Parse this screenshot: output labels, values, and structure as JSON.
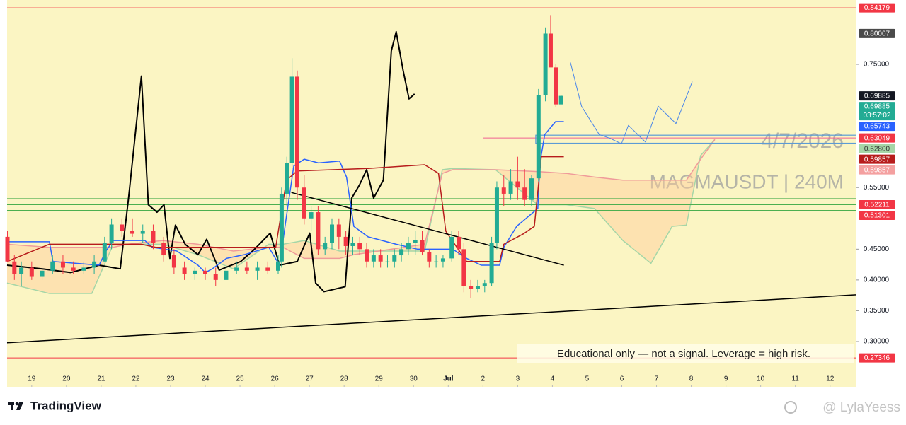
{
  "chart_data": {
    "type": "candlestick",
    "symbol_watermark": "MAGMAUSDT | 240M",
    "date_watermark": "4/7/2026",
    "annotation": "Educational only — not a signal. Leverage  = high risk.",
    "up_color": "#22ab94",
    "down_color": "#f23645",
    "xlim": [
      -0.71,
      23.76
    ],
    "ylim": [
      0.2265,
      0.8545
    ],
    "xticks": [
      {
        "value": 0,
        "label": "19"
      },
      {
        "value": 1,
        "label": "20"
      },
      {
        "value": 2,
        "label": "21"
      },
      {
        "value": 3,
        "label": "22"
      },
      {
        "value": 4,
        "label": "23"
      },
      {
        "value": 5,
        "label": "24"
      },
      {
        "value": 6,
        "label": "25"
      },
      {
        "value": 7,
        "label": "26"
      },
      {
        "value": 8,
        "label": "27"
      },
      {
        "value": 9,
        "label": "28"
      },
      {
        "value": 10,
        "label": "29"
      },
      {
        "value": 11,
        "label": "30"
      },
      {
        "value": 12,
        "label": "Jul"
      },
      {
        "value": 13,
        "label": "2"
      },
      {
        "value": 14,
        "label": "3"
      },
      {
        "value": 15,
        "label": "4"
      },
      {
        "value": 16,
        "label": "5"
      },
      {
        "value": 17,
        "label": "6"
      },
      {
        "value": 18,
        "label": "7"
      },
      {
        "value": 19,
        "label": "8"
      },
      {
        "value": 20,
        "label": "9"
      },
      {
        "value": 21,
        "label": "10"
      },
      {
        "value": 22,
        "label": "11"
      },
      {
        "value": 23,
        "label": "12"
      }
    ],
    "yticks": [
      {
        "value": 0.3,
        "label": "0.30000"
      },
      {
        "value": 0.35,
        "label": "0.35000"
      },
      {
        "value": 0.4,
        "label": "0.40000"
      },
      {
        "value": 0.45,
        "label": "0.45000"
      },
      {
        "value": 0.55,
        "label": "0.55000"
      },
      {
        "value": 0.75,
        "label": "0.75000"
      }
    ],
    "candles": {
      "x": [
        -0.7,
        -0.5,
        -0.3,
        0.0,
        0.3,
        0.6,
        0.9,
        1.2,
        1.5,
        1.8,
        2.1,
        2.3,
        2.6,
        2.9,
        3.2,
        3.5,
        3.8,
        4.1,
        4.4,
        4.7,
        5.0,
        5.3,
        5.6,
        5.9,
        6.2,
        6.5,
        6.8,
        7.1,
        7.2,
        7.35,
        7.5,
        7.65,
        7.85,
        8.05,
        8.25,
        8.45,
        8.65,
        8.85,
        9.05,
        9.25,
        9.45,
        9.65,
        9.85,
        10.05,
        10.25,
        10.45,
        10.65,
        10.85,
        11.05,
        11.25,
        11.45,
        11.65,
        11.85,
        12.1,
        12.3,
        12.45,
        12.65,
        12.85,
        13.05,
        13.25,
        13.4,
        13.6,
        13.8,
        14.0,
        14.2,
        14.4,
        14.6,
        14.8,
        14.95,
        15.1,
        15.25
      ],
      "open": [
        0.47,
        0.43,
        0.41,
        0.42,
        0.405,
        0.415,
        0.43,
        0.42,
        0.415,
        0.42,
        0.43,
        0.46,
        0.49,
        0.48,
        0.475,
        0.48,
        0.46,
        0.44,
        0.42,
        0.41,
        0.415,
        0.41,
        0.4,
        0.415,
        0.42,
        0.415,
        0.42,
        0.415,
        0.43,
        0.54,
        0.59,
        0.73,
        0.55,
        0.5,
        0.51,
        0.45,
        0.46,
        0.49,
        0.47,
        0.455,
        0.46,
        0.45,
        0.43,
        0.44,
        0.43,
        0.43,
        0.44,
        0.45,
        0.46,
        0.465,
        0.445,
        0.43,
        0.43,
        0.435,
        0.47,
        0.45,
        0.39,
        0.385,
        0.39,
        0.395,
        0.46,
        0.55,
        0.54,
        0.56,
        0.55,
        0.53,
        0.565,
        0.7,
        0.8,
        0.745,
        0.685
      ],
      "high": [
        0.48,
        0.44,
        0.43,
        0.43,
        0.42,
        0.44,
        0.44,
        0.43,
        0.43,
        0.44,
        0.47,
        0.5,
        0.5,
        0.5,
        0.49,
        0.49,
        0.47,
        0.45,
        0.43,
        0.42,
        0.42,
        0.42,
        0.42,
        0.43,
        0.43,
        0.43,
        0.43,
        0.44,
        0.55,
        0.6,
        0.76,
        0.74,
        0.57,
        0.52,
        0.52,
        0.47,
        0.5,
        0.5,
        0.48,
        0.47,
        0.47,
        0.46,
        0.45,
        0.45,
        0.44,
        0.45,
        0.46,
        0.47,
        0.48,
        0.48,
        0.45,
        0.44,
        0.44,
        0.48,
        0.48,
        0.46,
        0.4,
        0.4,
        0.4,
        0.47,
        0.56,
        0.57,
        0.58,
        0.6,
        0.58,
        0.57,
        0.71,
        0.81,
        0.83,
        0.75,
        0.7
      ],
      "low": [
        0.43,
        0.4,
        0.39,
        0.4,
        0.4,
        0.41,
        0.41,
        0.41,
        0.41,
        0.41,
        0.43,
        0.45,
        0.47,
        0.47,
        0.46,
        0.45,
        0.43,
        0.41,
        0.4,
        0.4,
        0.4,
        0.39,
        0.4,
        0.41,
        0.41,
        0.4,
        0.41,
        0.41,
        0.42,
        0.52,
        0.58,
        0.53,
        0.49,
        0.48,
        0.44,
        0.44,
        0.45,
        0.45,
        0.44,
        0.44,
        0.44,
        0.42,
        0.42,
        0.42,
        0.42,
        0.42,
        0.43,
        0.44,
        0.44,
        0.44,
        0.42,
        0.42,
        0.42,
        0.43,
        0.44,
        0.38,
        0.37,
        0.38,
        0.38,
        0.39,
        0.45,
        0.52,
        0.53,
        0.53,
        0.52,
        0.52,
        0.56,
        0.69,
        0.77,
        0.68,
        0.685
      ],
      "close": [
        0.43,
        0.41,
        0.42,
        0.405,
        0.415,
        0.43,
        0.42,
        0.415,
        0.42,
        0.43,
        0.46,
        0.49,
        0.48,
        0.475,
        0.48,
        0.46,
        0.44,
        0.42,
        0.41,
        0.415,
        0.41,
        0.4,
        0.415,
        0.42,
        0.415,
        0.42,
        0.415,
        0.43,
        0.54,
        0.59,
        0.73,
        0.55,
        0.5,
        0.51,
        0.45,
        0.46,
        0.49,
        0.47,
        0.455,
        0.46,
        0.45,
        0.43,
        0.44,
        0.43,
        0.43,
        0.44,
        0.45,
        0.46,
        0.465,
        0.445,
        0.43,
        0.43,
        0.435,
        0.47,
        0.45,
        0.39,
        0.385,
        0.39,
        0.395,
        0.46,
        0.55,
        0.54,
        0.56,
        0.55,
        0.53,
        0.565,
        0.7,
        0.8,
        0.745,
        0.685,
        0.69885
      ]
    },
    "cloud": {
      "x": [
        -0.71,
        0.51,
        1.73,
        2.35,
        2.75,
        3.77,
        4.79,
        5.81,
        6.83,
        7.24,
        7.85,
        8.87,
        9.28,
        11.32,
        11.83,
        12.13,
        13.36,
        14.58,
        15.4,
        16.21,
        17.03,
        17.84,
        18.45,
        18.86,
        19.27,
        19.68
      ],
      "a": [
        0.395,
        0.378,
        0.378,
        0.458,
        0.458,
        0.458,
        0.441,
        0.418,
        0.458,
        0.458,
        0.464,
        0.447,
        0.447,
        0.447,
        0.579,
        0.581,
        0.579,
        0.522,
        0.522,
        0.516,
        0.464,
        0.427,
        0.487,
        0.489,
        0.602,
        0.628
      ],
      "b": [
        0.458,
        0.453,
        0.453,
        0.453,
        0.458,
        0.464,
        0.458,
        0.447,
        0.453,
        0.453,
        0.435,
        0.435,
        0.441,
        0.458,
        0.573,
        0.579,
        0.579,
        0.576,
        0.573,
        0.567,
        0.562,
        0.562,
        0.562,
        0.562,
        0.596,
        0.628
      ],
      "a_color": "#a5d6a7",
      "b_color": "#ef9a9a",
      "fill": "#ffcc99"
    },
    "overlays": [
      {
        "color": "#000000",
        "width": 2,
        "x": [
          -0.71,
          0.31,
          1.12,
          1.94,
          2.55,
          2.79,
          3.16,
          3.36,
          3.61,
          3.81,
          3.98,
          4.14,
          4.42,
          4.79,
          5.04,
          5.4,
          6.02,
          6.42,
          6.87,
          7.14,
          7.65,
          8.01,
          8.18,
          8.42,
          9.03,
          9.22,
          9.44,
          9.65,
          9.85,
          10.13,
          10.36,
          10.5,
          10.7,
          10.87,
          11.03
        ],
        "values": [
          0.424,
          0.418,
          0.412,
          0.424,
          0.418,
          0.533,
          0.731,
          0.522,
          0.51,
          0.522,
          0.435,
          0.489,
          0.458,
          0.441,
          0.466,
          0.416,
          0.43,
          0.45,
          0.476,
          0.424,
          0.43,
          0.476,
          0.395,
          0.381,
          0.389,
          0.533,
          0.554,
          0.579,
          0.533,
          0.562,
          0.772,
          0.803,
          0.74,
          0.694,
          0.702
        ]
      },
      {
        "color": "#2962ff",
        "width": 1.5,
        "x": [
          -0.71,
          0.51,
          0.61,
          1.94,
          2.14,
          2.35,
          3.26,
          3.47,
          4.18,
          4.79,
          5.0,
          5.2,
          5.61,
          6.12,
          6.83,
          7.14,
          7.34,
          7.55,
          7.85,
          8.26,
          8.87,
          9.07,
          9.28,
          9.69,
          10.5,
          11.11,
          12.13,
          12.53,
          12.95,
          13.48,
          13.6,
          13.97,
          14.58,
          14.64,
          14.78,
          15.09,
          15.33
        ],
        "values": [
          0.462,
          0.462,
          0.43,
          0.424,
          0.447,
          0.464,
          0.464,
          0.453,
          0.447,
          0.424,
          0.412,
          0.418,
          0.435,
          0.441,
          0.453,
          0.424,
          0.504,
          0.585,
          0.596,
          0.59,
          0.593,
          0.567,
          0.487,
          0.47,
          0.458,
          0.45,
          0.45,
          0.435,
          0.424,
          0.424,
          0.453,
          0.487,
          0.516,
          0.59,
          0.636,
          0.657,
          0.657
        ]
      },
      {
        "color": "#b71c1c",
        "width": 1.5,
        "x": [
          -0.71,
          0.51,
          3.16,
          3.57,
          7.03,
          7.34,
          7.65,
          8.67,
          9.69,
          11.32,
          11.72,
          11.93,
          12.53,
          13.48,
          13.6,
          14.17,
          14.48,
          14.68,
          15.33
        ],
        "values": [
          0.43,
          0.458,
          0.458,
          0.453,
          0.453,
          0.562,
          0.577,
          0.579,
          0.581,
          0.587,
          0.573,
          0.479,
          0.43,
          0.43,
          0.458,
          0.475,
          0.487,
          0.6,
          0.6
        ]
      },
      {
        "color": "#000000",
        "width": 1.5,
        "x": [
          7.48,
          15.33
        ],
        "values": [
          0.542,
          0.424
        ]
      },
      {
        "color": "#000000",
        "width": 1.5,
        "x": [
          -0.71,
          23.8
        ],
        "values": [
          0.298,
          0.376
        ]
      },
      {
        "color": "#4a86e8",
        "width": 1,
        "x": [
          15.52,
          15.84,
          16.35,
          16.66,
          16.99,
          17.19,
          17.68,
          18.05,
          18.56,
          19.03
        ],
        "values": [
          0.753,
          0.682,
          0.636,
          0.63,
          0.621,
          0.651,
          0.624,
          0.682,
          0.654,
          0.722
        ]
      }
    ],
    "levels": [
      {
        "value": 0.84179,
        "color": "#f23645"
      },
      {
        "value": 0.27346,
        "color": "#f23645"
      },
      {
        "value": 0.532,
        "color": "#4caf50"
      },
      {
        "value": 0.52211,
        "color": "#4caf50"
      },
      {
        "value": 0.51301,
        "color": "#4caf50"
      },
      {
        "value": 0.63049,
        "color": "#f06292",
        "x_start": 13.0
      }
    ],
    "zone": {
      "x_start": 14.52,
      "top": 0.635,
      "bottom": 0.622,
      "color": "#5b9bd5"
    },
    "price_tags": [
      {
        "value": 0.84179,
        "color": "#f23645"
      },
      {
        "value": 0.80007,
        "color": "#4a4a4a"
      },
      {
        "value": 0.69885,
        "color": "#131722"
      },
      {
        "value": 0.69885,
        "color": "#22ab94",
        "countdown": "03:57:02"
      },
      {
        "value": 0.65743,
        "color": "#2962ff"
      },
      {
        "value": 0.63049,
        "color": "#f23645"
      },
      {
        "value": 0.628,
        "label": "0.62800",
        "color": "#a5d6a7",
        "text_color": "#333333"
      },
      {
        "value": 0.59857,
        "color": "#b71c1c"
      },
      {
        "value": 0.59857,
        "color": "#f4a0a0"
      },
      {
        "value": 0.52211,
        "color": "#f23645"
      },
      {
        "value": 0.51301,
        "color": "#f23645"
      },
      {
        "value": 0.27346,
        "color": "#f23645"
      }
    ]
  },
  "footer": {
    "brand": "TradingView",
    "watermark": "@ LylaYeess"
  }
}
